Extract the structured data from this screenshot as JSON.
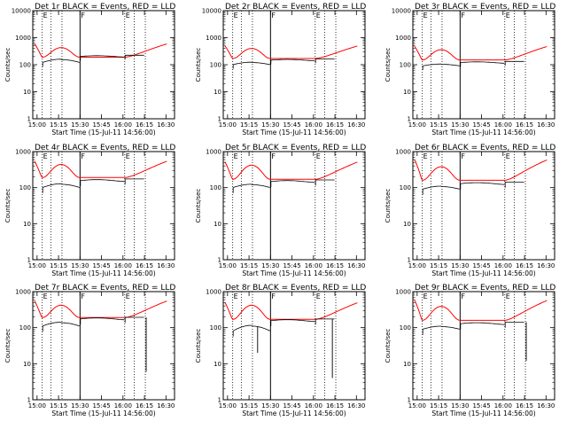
{
  "panels": [
    {
      "title": "Det 1r BLACK = Events, RED = LLD",
      "markers": [
        {
          "label": "E",
          "t": 15.06,
          "solid": false
        },
        {
          "label": "F",
          "t": 15.5,
          "solid": true
        },
        {
          "label": "E",
          "t": 16.02,
          "solid": false
        }
      ]
    },
    {
      "title": "Det 2r BLACK = Events, RED = LLD",
      "markers": [
        {
          "label": "E",
          "t": 15.06,
          "solid": false
        },
        {
          "label": "F",
          "t": 15.5,
          "solid": true
        },
        {
          "label": "E",
          "t": 16.02,
          "solid": false
        }
      ]
    },
    {
      "title": "Det 3r BLACK = Events, RED = LLD",
      "markers": [
        {
          "label": "E",
          "t": 15.06,
          "solid": false
        },
        {
          "label": "F",
          "t": 15.5,
          "solid": true
        },
        {
          "label": "E",
          "t": 16.02,
          "solid": false
        }
      ]
    },
    {
      "title": "Det 4r BLACK = Events, RED = LLD",
      "markers": [
        {
          "label": "E",
          "t": 15.06,
          "solid": false
        },
        {
          "label": "F",
          "t": 15.5,
          "solid": true
        },
        {
          "label": "E",
          "t": 16.02,
          "solid": false
        }
      ]
    },
    {
      "title": "Det 5r BLACK = Events, RED = LLD",
      "markers": [
        {
          "label": "E",
          "t": 15.06,
          "solid": false
        },
        {
          "label": "F",
          "t": 15.5,
          "solid": true
        },
        {
          "label": "E",
          "t": 16.02,
          "solid": false
        }
      ]
    },
    {
      "title": "Det 6r BLACK = Events, RED = LLD",
      "markers": [
        {
          "label": "E",
          "t": 15.06,
          "solid": false
        },
        {
          "label": "F",
          "t": 15.5,
          "solid": true
        },
        {
          "label": "E",
          "t": 16.02,
          "solid": false
        }
      ]
    },
    {
      "title": "Det 7r BLACK = Events, RED = LLD",
      "markers": [
        {
          "label": "E",
          "t": 15.06,
          "solid": false
        },
        {
          "label": "F",
          "t": 15.5,
          "solid": true
        },
        {
          "label": "E",
          "t": 16.02,
          "solid": false
        }
      ]
    },
    {
      "title": "Det 8r BLACK = Events, RED = LLD",
      "markers": [
        {
          "label": "E",
          "t": 15.06,
          "solid": false
        },
        {
          "label": "F",
          "t": 15.5,
          "solid": true
        },
        {
          "label": "E",
          "t": 16.02,
          "solid": false
        }
      ]
    },
    {
      "title": "Det 9r BLACK = Events, RED = LLD",
      "markers": [
        {
          "label": "E",
          "t": 15.06,
          "solid": false
        },
        {
          "label": "F",
          "t": 15.5,
          "solid": true
        },
        {
          "label": "E",
          "t": 16.02,
          "solid": false
        }
      ]
    }
  ],
  "axes": {
    "xlabel": "Start Time (15-Jul-11 14:56:00)",
    "ylabel": "Counts/sec",
    "xticks": [
      {
        "label": "15:00",
        "t": 15.0
      },
      {
        "label": "15:15",
        "t": 15.25
      },
      {
        "label": "15:30",
        "t": 15.5
      },
      {
        "label": "15:45",
        "t": 15.75
      },
      {
        "label": "16:00",
        "t": 16.0
      },
      {
        "label": "16:15",
        "t": 16.25
      },
      {
        "label": "16:30",
        "t": 16.5
      }
    ],
    "yticks_row1": [
      {
        "label": "10000",
        "v": 10000
      },
      {
        "label": "1000",
        "v": 1000
      },
      {
        "label": "100",
        "v": 100
      },
      {
        "label": "10",
        "v": 10
      },
      {
        "label": "1",
        "v": 1
      }
    ],
    "yticks": [
      {
        "label": "1000",
        "v": 1000
      },
      {
        "label": "100",
        "v": 100
      },
      {
        "label": "10",
        "v": 10
      },
      {
        "label": "1",
        "v": 1
      }
    ]
  },
  "chart_data": {
    "type": "line",
    "yscale": "log",
    "xlim": [
      14.95,
      16.6
    ],
    "ylim_row1": [
      1,
      10000
    ],
    "ylim": [
      1,
      1000
    ],
    "series_colors": {
      "LLD": "#ff0000",
      "Events": "#000000"
    },
    "dotted_lines_t": [
      15.16,
      15.29,
      16.13,
      16.26
    ],
    "gaps": [
      [
        15.06,
        15.5
      ],
      [
        15.5,
        16.02
      ],
      [
        16.02,
        16.26
      ]
    ],
    "lld_model": {
      "start_t": 14.97,
      "end_t": 16.52,
      "edge": [
        600,
        500,
        480,
        550,
        520,
        600,
        560,
        500,
        580
      ],
      "plateau": [
        190,
        170,
        150,
        190,
        170,
        160,
        190,
        170,
        160
      ],
      "peak": [
        430,
        400,
        360,
        440,
        420,
        380,
        420,
        420,
        390
      ]
    },
    "events_model": {
      "plateau": [
        220,
        160,
        130,
        170,
        160,
        140,
        190,
        170,
        140
      ],
      "dip": [
        120,
        100,
        90,
        100,
        100,
        90,
        110,
        80,
        90
      ]
    },
    "spikes": [
      {
        "panel": 6,
        "t": 16.27,
        "v": 6
      },
      {
        "panel": 7,
        "t": 15.35,
        "v": 20
      },
      {
        "panel": 7,
        "t": 16.22,
        "v": 4
      },
      {
        "panel": 8,
        "t": 16.27,
        "v": 12
      }
    ]
  }
}
